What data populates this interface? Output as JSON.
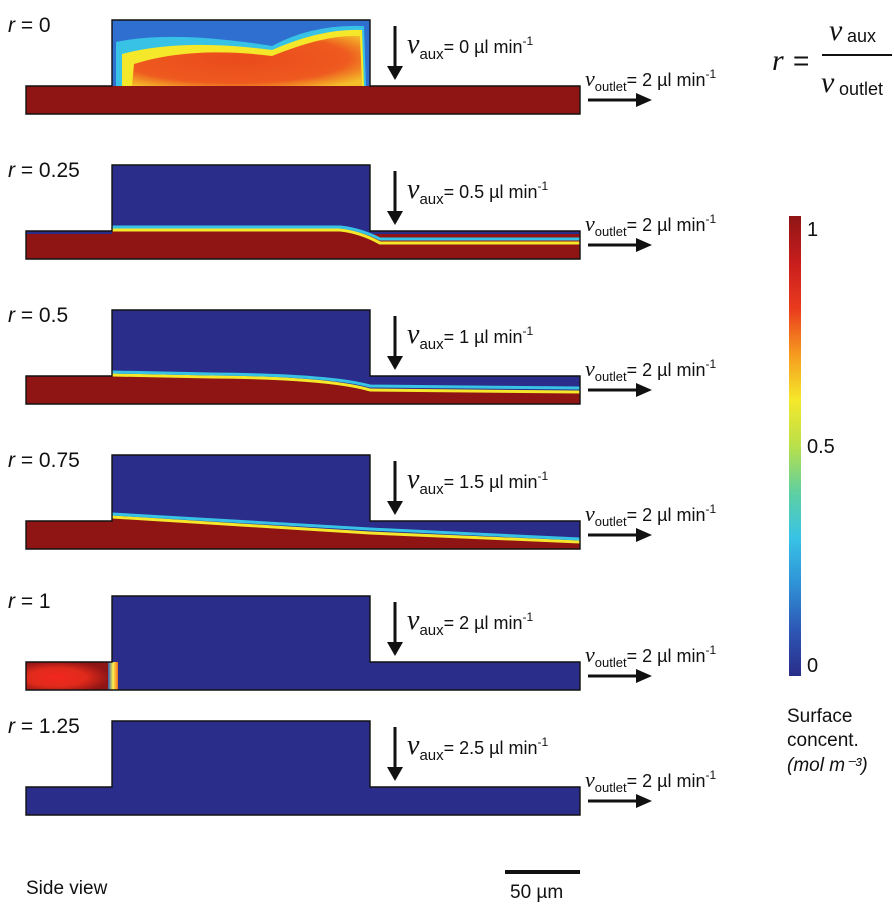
{
  "formula": {
    "lhs": "r",
    "eq": "=",
    "num_sym": "ν",
    "num_sub": "aux",
    "den_sym": "ν",
    "den_sub": "outlet"
  },
  "panels": [
    {
      "r_sym": "r",
      "r_text": " = 0",
      "v_sym": "ν",
      "aux_sub": "aux",
      "aux_rate": "= 0 µl min",
      "outlet_sub": "outlet",
      "outlet_rate": "= 2 µl min",
      "unit_exp": "-1",
      "band": "warm"
    },
    {
      "r_sym": "r",
      "r_text": " = 0.25",
      "v_sym": "ν",
      "aux_sub": "aux",
      "aux_rate": "= 0.5 µl min",
      "outlet_sub": "outlet",
      "outlet_rate": "= 2 µl min",
      "unit_exp": "-1",
      "band": "flat"
    },
    {
      "r_sym": "r",
      "r_text": " = 0.5",
      "v_sym": "ν",
      "aux_sub": "aux",
      "aux_rate": "= 1 µl min",
      "outlet_sub": "outlet",
      "outlet_rate": "= 2 µl min",
      "unit_exp": "-1",
      "band": "mid"
    },
    {
      "r_sym": "r",
      "r_text": " = 0.75",
      "v_sym": "ν",
      "aux_sub": "aux",
      "aux_rate": "= 1.5 µl min",
      "outlet_sub": "outlet",
      "outlet_rate": "= 2 µl min",
      "unit_exp": "-1",
      "band": "slope"
    },
    {
      "r_sym": "r",
      "r_text": " = 1",
      "v_sym": "ν",
      "aux_sub": "aux",
      "aux_rate": "= 2 µl min",
      "outlet_sub": "outlet",
      "outlet_rate": "= 2 µl min",
      "unit_exp": "-1",
      "band": "corner"
    },
    {
      "r_sym": "r",
      "r_text": " = 1.25",
      "v_sym": "ν",
      "aux_sub": "aux",
      "aux_rate": "= 2.5 µl min",
      "outlet_sub": "outlet",
      "outlet_rate": "= 2 µl min",
      "unit_exp": "-1",
      "band": "none"
    }
  ],
  "colorbar": {
    "tick_max": "1",
    "tick_mid": "0.5",
    "tick_min": "0",
    "title_line1": "Surface",
    "title_line2": "concent.",
    "unit": "(mol m⁻³)",
    "colors": [
      "#2a2d8a",
      "#2e57b5",
      "#2f92d6",
      "#38c3e6",
      "#5fd0a0",
      "#b9e04a",
      "#f5e82a",
      "#f59a1f",
      "#ea3a1e",
      "#c81d1d",
      "#8f1515"
    ]
  },
  "scale_bar": {
    "label": "50 µm"
  },
  "view_label": "Side view",
  "colors": {
    "low": "#2a2d8a",
    "high": "#8f1515",
    "warm": "#e8391c"
  }
}
